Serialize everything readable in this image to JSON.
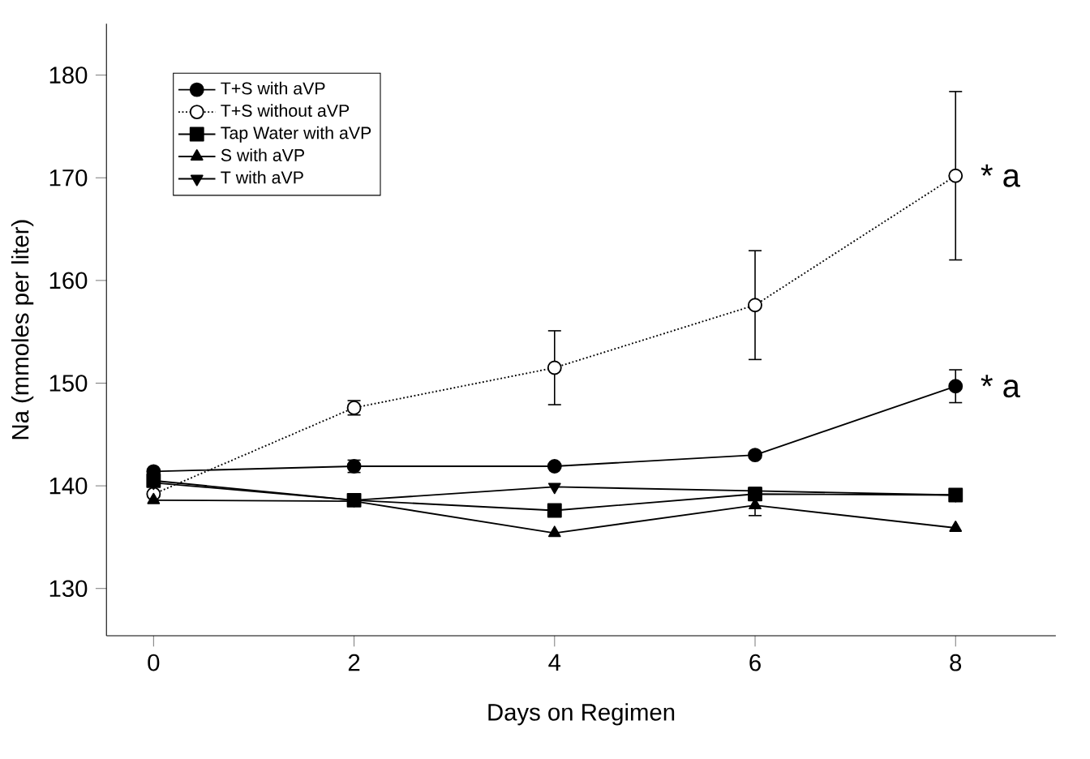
{
  "chart_data": {
    "type": "line",
    "xlabel": "Days on Regimen",
    "ylabel": "Na (mmoles per liter)",
    "x": [
      0,
      2,
      4,
      6,
      8
    ],
    "series": [
      {
        "name": "T+S with aVP",
        "color": "#000000",
        "marker": "circle",
        "line_style": "solid",
        "values": [
          141.4,
          141.9,
          141.9,
          143.0,
          149.7
        ],
        "errors": [
          null,
          0.6,
          null,
          null,
          1.6
        ]
      },
      {
        "name": "T+S without aVP",
        "color": "#000000",
        "marker": "circle",
        "line_style": "dotted",
        "values": [
          139.2,
          147.6,
          151.5,
          157.6,
          170.2
        ],
        "errors": [
          null,
          0.7,
          3.6,
          5.3,
          8.2
        ]
      },
      {
        "name": "Tap Water with aVP",
        "color": "#000000",
        "marker": "square",
        "line_style": "solid",
        "values": [
          140.5,
          138.6,
          137.6,
          139.2,
          139.1
        ]
      },
      {
        "name": "S with aVP",
        "color": "#000000",
        "marker": "triangle",
        "line_style": "solid",
        "values": [
          138.6,
          138.5,
          135.4,
          138.1,
          135.9
        ],
        "errors": [
          null,
          null,
          null,
          1.0,
          null
        ]
      },
      {
        "name": "T with aVP",
        "color": "#000000",
        "marker": "triangle-down",
        "line_style": "solid",
        "values": [
          140.3,
          138.6,
          139.9,
          139.5,
          139.1
        ]
      }
    ],
    "annotations": [
      {
        "text": "* a",
        "x": 8,
        "y": 170.2
      },
      {
        "text": "* a",
        "x": 8,
        "y": 149.7
      }
    ],
    "xlim": [
      -0.47,
      9
    ],
    "ylim": [
      125.4,
      185
    ],
    "xticks": [
      0,
      2,
      4,
      6,
      8
    ],
    "yticks": [
      130,
      140,
      150,
      160,
      170,
      180
    ],
    "legend": "top left",
    "grid": false
  }
}
